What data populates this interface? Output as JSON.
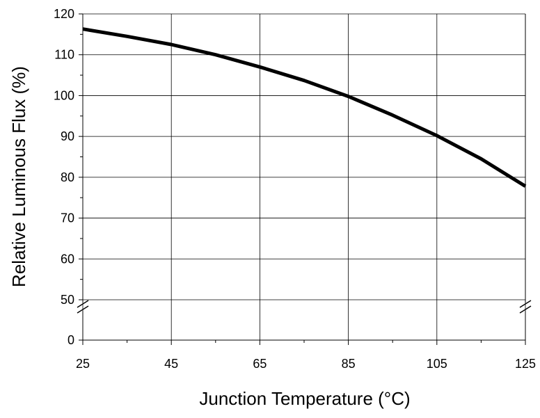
{
  "chart_data": {
    "type": "line",
    "title": "",
    "xlabel": "Junction Temperature (°C)",
    "ylabel": "Relative Luminous Flux (%)",
    "xlim": [
      25,
      125
    ],
    "ylim": [
      50,
      120
    ],
    "y_break": {
      "below": 50,
      "label_value": 0
    },
    "x_ticks": [
      25,
      45,
      65,
      85,
      105,
      125
    ],
    "y_ticks": [
      120,
      110,
      100,
      90,
      80,
      70,
      60,
      50
    ],
    "y_break_tick_label": "0",
    "grid": true,
    "legend": "none",
    "line_color": "#000000",
    "series": [
      {
        "x": [
          25,
          35,
          45,
          55,
          65,
          75,
          85,
          95,
          105,
          115,
          125
        ],
        "y": [
          116.3,
          114.5,
          112.5,
          110.0,
          107.0,
          103.7,
          99.8,
          95.2,
          90.2,
          84.5,
          77.8
        ]
      }
    ]
  }
}
